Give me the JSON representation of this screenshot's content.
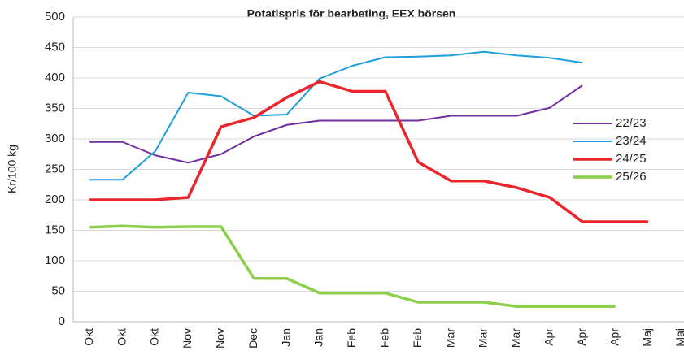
{
  "chart_data": {
    "type": "line",
    "title": "Potatispris för bearbeting, EEX börsen",
    "y_label": "Kr/100 kg",
    "categories": [
      "Okt",
      "Okt",
      "Okt",
      "Nov",
      "Nov",
      "Dec",
      "Jan",
      "Jan",
      "Feb",
      "Feb",
      "Feb",
      "Mar",
      "Mar",
      "Mar",
      "Apr",
      "Apr",
      "Apr",
      "Maj",
      "Maj"
    ],
    "ylim": [
      0,
      500
    ],
    "yticks": [
      0,
      50,
      100,
      150,
      200,
      250,
      300,
      350,
      400,
      450,
      500
    ],
    "grid": true,
    "legend": "right",
    "series": [
      {
        "name": "22/23",
        "color": "#7030a0",
        "width": 2,
        "values": [
          295,
          295,
          273,
          261,
          275,
          304,
          323,
          330,
          330,
          330,
          330,
          338,
          338,
          338,
          351,
          388,
          null,
          null,
          null
        ]
      },
      {
        "name": "23/24",
        "color": "#1fa0d8",
        "width": 2,
        "values": [
          233,
          233,
          280,
          376,
          370,
          338,
          340,
          399,
          420,
          434,
          435,
          437,
          443,
          437,
          433,
          425,
          null,
          null,
          null
        ]
      },
      {
        "name": "24/25",
        "color": "#e8262b",
        "width": 3.5,
        "values": [
          200,
          200,
          200,
          204,
          320,
          335,
          368,
          394,
          378,
          378,
          262,
          231,
          231,
          220,
          204,
          164,
          164,
          164,
          null
        ]
      },
      {
        "name": "25/26",
        "color": "#8ccf4a",
        "width": 3.5,
        "values": [
          155,
          157,
          155,
          156,
          156,
          71,
          71,
          47,
          47,
          47,
          32,
          32,
          32,
          25,
          25,
          25,
          25,
          null,
          null
        ]
      }
    ]
  }
}
